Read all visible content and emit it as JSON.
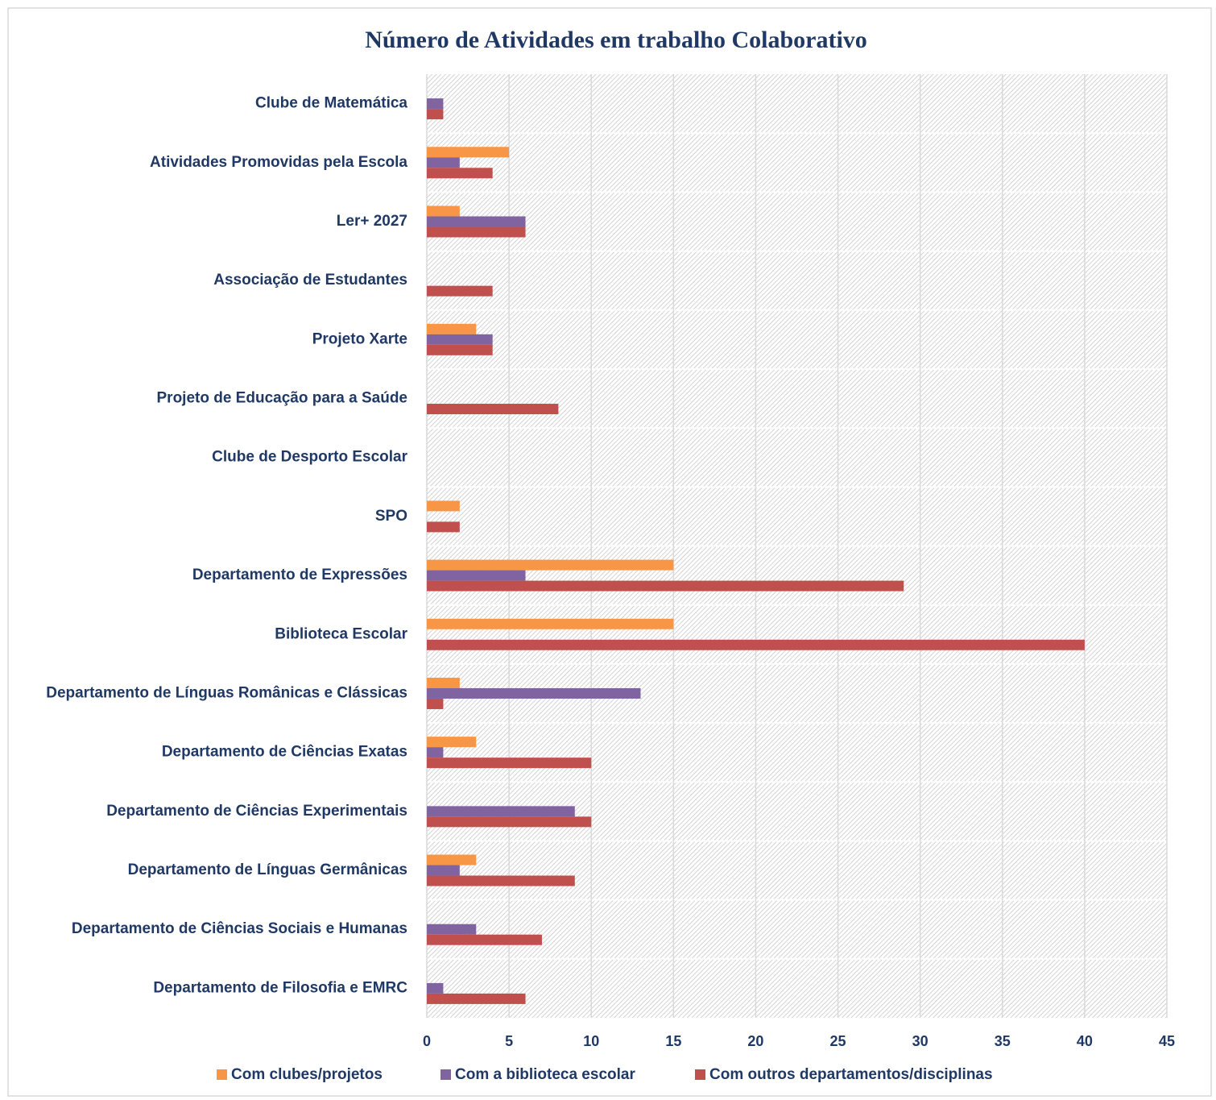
{
  "chart_data": {
    "type": "hbar",
    "title": "Número de Atividades em trabalho Colaborativo",
    "categories": [
      "Clube de Matemática",
      "Atividades Promovidas pela Escola",
      "Ler+ 2027",
      "Associação de Estudantes",
      "Projeto Xarte",
      "Projeto de Educação para a Saúde",
      "Clube de Desporto Escolar",
      "SPO",
      "Departamento de Expressões",
      "Biblioteca Escolar",
      "Departamento de Línguas Românicas e Clássicas",
      "Departamento de Ciências Exatas",
      "Departamento de Ciências Experimentais",
      "Departamento de Línguas Germânicas",
      "Departamento de Ciências Sociais e Humanas",
      "Departamento de Filosofia e EMRC"
    ],
    "series": [
      {
        "name": "Com clubes/projetos",
        "color": "#f79646",
        "values": [
          0,
          5,
          2,
          0,
          3,
          0,
          0,
          2,
          15,
          15,
          2,
          3,
          0,
          3,
          0,
          0
        ]
      },
      {
        "name": "Com a biblioteca escolar",
        "color": "#8064a2",
        "values": [
          1,
          2,
          6,
          0,
          4,
          0,
          0,
          0,
          6,
          0,
          13,
          1,
          9,
          2,
          3,
          1
        ]
      },
      {
        "name": "Com outros departamentos/disciplinas",
        "color": "#c0504d",
        "values": [
          1,
          4,
          6,
          4,
          4,
          8,
          0,
          2,
          29,
          40,
          1,
          10,
          10,
          9,
          7,
          6
        ]
      }
    ],
    "xlim": [
      0,
      45
    ],
    "xticks": [
      0,
      5,
      10,
      15,
      20,
      25,
      30,
      35,
      40,
      45
    ],
    "grid": true,
    "legend": "bottom"
  }
}
